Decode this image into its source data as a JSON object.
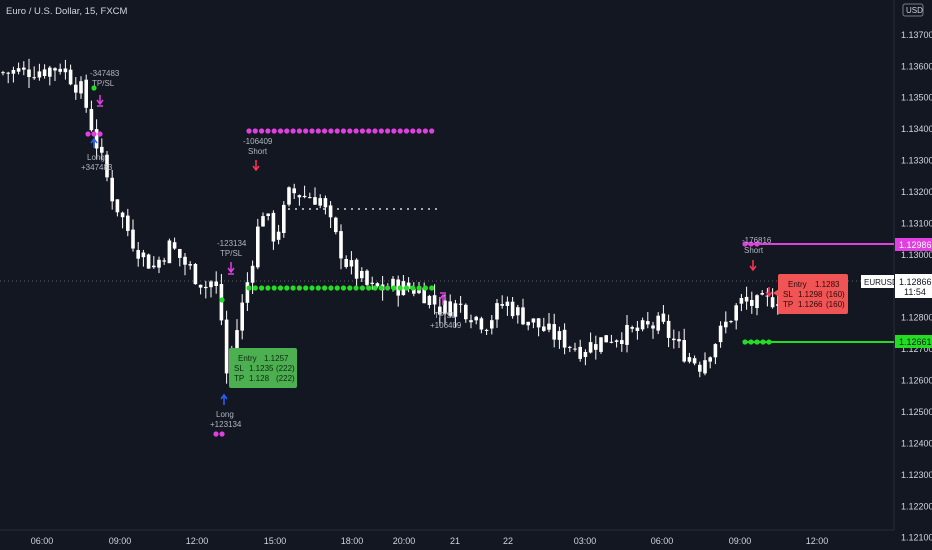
{
  "header": {
    "title": "Euro / U.S. Dollar, 15, FXCM"
  },
  "currency": "USD",
  "colors": {
    "bg": "#131722",
    "candle": "#ffffff",
    "magenta": "#e040e0",
    "green": "#22dd22",
    "red_arrow": "#ff3355",
    "blue_arrow": "#2962ff",
    "entry_green": "#4caf50",
    "entry_red": "#f05454"
  },
  "chart_data": {
    "type": "candlestick",
    "symbol": "EURUSD",
    "ylim": [
      1.1208,
      1.1376
    ],
    "y_ticks": [
      "1.13700",
      "1.13600",
      "1.13500",
      "1.13400",
      "1.13300",
      "1.13200",
      "1.13100",
      "1.13000",
      "1.12900",
      "1.12800",
      "1.12700",
      "1.12600",
      "1.12500",
      "1.12400",
      "1.12300",
      "1.12200",
      "1.12100"
    ],
    "x_ticks": [
      "06:00",
      "09:00",
      "12:00",
      "15:00",
      "18:00",
      "20:00",
      "21",
      "22",
      "03:00",
      "06:00",
      "09:00",
      "12:00"
    ],
    "last_price": {
      "symbol": "EURUSD",
      "price": "1.12866",
      "countdown": "11:54"
    },
    "stop_level": "1.12986",
    "target_level": "1.12661",
    "close_path": [
      {
        "t": "04:30",
        "price": 1.1358
      },
      {
        "t": "06:00",
        "price": 1.1359
      },
      {
        "t": "07:30",
        "price": 1.136
      },
      {
        "t": "08:00",
        "price": 1.1352
      },
      {
        "t": "08:30",
        "price": 1.1337
      },
      {
        "t": "09:00",
        "price": 1.1318
      },
      {
        "t": "09:30",
        "price": 1.1303
      },
      {
        "t": "10:00",
        "price": 1.1296
      },
      {
        "t": "10:30",
        "price": 1.1303
      },
      {
        "t": "11:00",
        "price": 1.1296
      },
      {
        "t": "11:30",
        "price": 1.129
      },
      {
        "t": "12:00",
        "price": 1.1292
      },
      {
        "t": "12:30",
        "price": 1.1284
      },
      {
        "t": "13:00",
        "price": 1.1261
      },
      {
        "t": "13:30",
        "price": 1.1275
      },
      {
        "t": "14:00",
        "price": 1.1295
      },
      {
        "t": "14:30",
        "price": 1.1315
      },
      {
        "t": "15:00",
        "price": 1.1305
      },
      {
        "t": "15:30",
        "price": 1.132
      },
      {
        "t": "16:30",
        "price": 1.1318
      },
      {
        "t": "17:30",
        "price": 1.131
      },
      {
        "t": "18:00",
        "price": 1.1298
      },
      {
        "t": "18:30",
        "price": 1.1289
      },
      {
        "t": "19:00",
        "price": 1.129
      },
      {
        "t": "20:00",
        "price": 1.1289
      },
      {
        "t": "20:30",
        "price": 1.1283
      },
      {
        "t": "21:00",
        "price": 1.1284
      },
      {
        "t": "21:30",
        "price": 1.1278
      },
      {
        "t": "22:00",
        "price": 1.1285
      },
      {
        "t": "22:30",
        "price": 1.1281
      },
      {
        "t": "01:00",
        "price": 1.1275
      },
      {
        "t": "02:00",
        "price": 1.127
      },
      {
        "t": "03:00",
        "price": 1.1274
      },
      {
        "t": "04:00",
        "price": 1.1275
      },
      {
        "t": "05:00",
        "price": 1.1278
      },
      {
        "t": "06:00",
        "price": 1.127
      },
      {
        "t": "07:00",
        "price": 1.1265
      },
      {
        "t": "08:00",
        "price": 1.1275
      },
      {
        "t": "08:30",
        "price": 1.1285
      },
      {
        "t": "09:00",
        "price": 1.1284
      },
      {
        "t": "09:30",
        "price": 1.1287
      }
    ],
    "annotations": {
      "tl_num": "-347483",
      "tl_tp": "TP/SL",
      "long1_label": "Long",
      "long1_num": "+347483",
      "short1_num": "-106409",
      "short1_label": "Short",
      "mid_num": "-123134",
      "mid_tp": "TP/SL",
      "long2_label": "Long",
      "long2_num": "+123134",
      "tp2_label": "TP/SL",
      "tp2_num": "+106409",
      "short2_num": "-176816",
      "short2_label": "Short"
    },
    "entry_long": {
      "entry_label": "Entry",
      "entry": "1.1257",
      "sl_label": "SL",
      "sl": "1.1235",
      "sl_pips": "(222)",
      "tp_label": "TP",
      "tp": "1.128",
      "tp_pips": "(222)"
    },
    "entry_short": {
      "entry_label": "Entry",
      "entry": "1.1283",
      "sl_label": "SL",
      "sl": "1.1298",
      "sl_pips": "(160)",
      "tp_label": "TP",
      "tp": "1.1266",
      "tp_pips": "(160)"
    }
  }
}
